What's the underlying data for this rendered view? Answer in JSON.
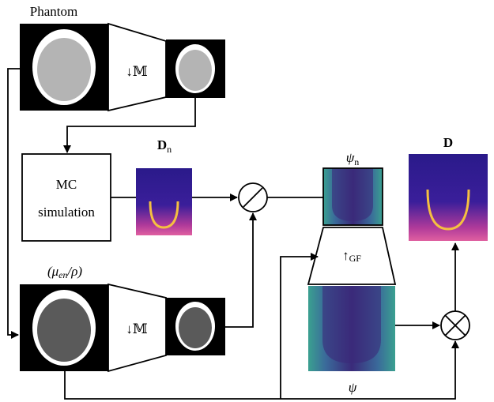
{
  "labels": {
    "phantom": "Phantom",
    "down_top": "↓𝕄",
    "mc_line1": "MC",
    "mc_line2": "simulation",
    "dn": {
      "main": "D",
      "sub": "n"
    },
    "psi_n": {
      "main": "ψ",
      "sub": "n"
    },
    "d": "D",
    "mu": {
      "open": "(μ",
      "sub": "en",
      "close": "/ρ)"
    },
    "down_bottom": "↓𝕄",
    "up": {
      "main": "↑",
      "sub": "GF"
    },
    "psi": "ψ"
  }
}
